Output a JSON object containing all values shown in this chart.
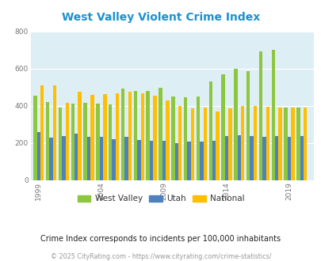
{
  "title": "West Valley Violent Crime Index",
  "title_color": "#1a92d0",
  "subtitle": "Crime Index corresponds to incidents per 100,000 inhabitants",
  "footer": "© 2025 CityRating.com - https://www.cityrating.com/crime-statistics/",
  "years": [
    1999,
    2000,
    2001,
    2002,
    2003,
    2004,
    2005,
    2006,
    2007,
    2008,
    2009,
    2010,
    2011,
    2012,
    2013,
    2014,
    2015,
    2016,
    2017,
    2018,
    2019,
    2020
  ],
  "west_valley": [
    455,
    420,
    390,
    410,
    415,
    410,
    405,
    490,
    480,
    480,
    495,
    450,
    445,
    450,
    530,
    570,
    600,
    585,
    690,
    700,
    390,
    390
  ],
  "utah": [
    258,
    230,
    235,
    250,
    232,
    232,
    222,
    232,
    215,
    213,
    210,
    200,
    207,
    208,
    213,
    238,
    242,
    238,
    232,
    238,
    232,
    238
  ],
  "national": [
    510,
    510,
    415,
    475,
    460,
    462,
    468,
    475,
    468,
    452,
    428,
    400,
    387,
    388,
    368,
    385,
    398,
    398,
    393,
    388,
    388,
    388
  ],
  "bar_width": 0.28,
  "west_valley_color": "#8dc63f",
  "utah_color": "#4f81bd",
  "national_color": "#ffbf00",
  "bg_color": "#ffffff",
  "plot_bg_color": "#deeef5",
  "ylim": [
    0,
    800
  ],
  "yticks": [
    0,
    200,
    400,
    600,
    800
  ],
  "xtick_years": [
    1999,
    2004,
    2009,
    2014,
    2019
  ],
  "legend_labels": [
    "West Valley",
    "Utah",
    "National"
  ],
  "legend_colors": [
    "#8dc63f",
    "#4f81bd",
    "#ffbf00"
  ]
}
